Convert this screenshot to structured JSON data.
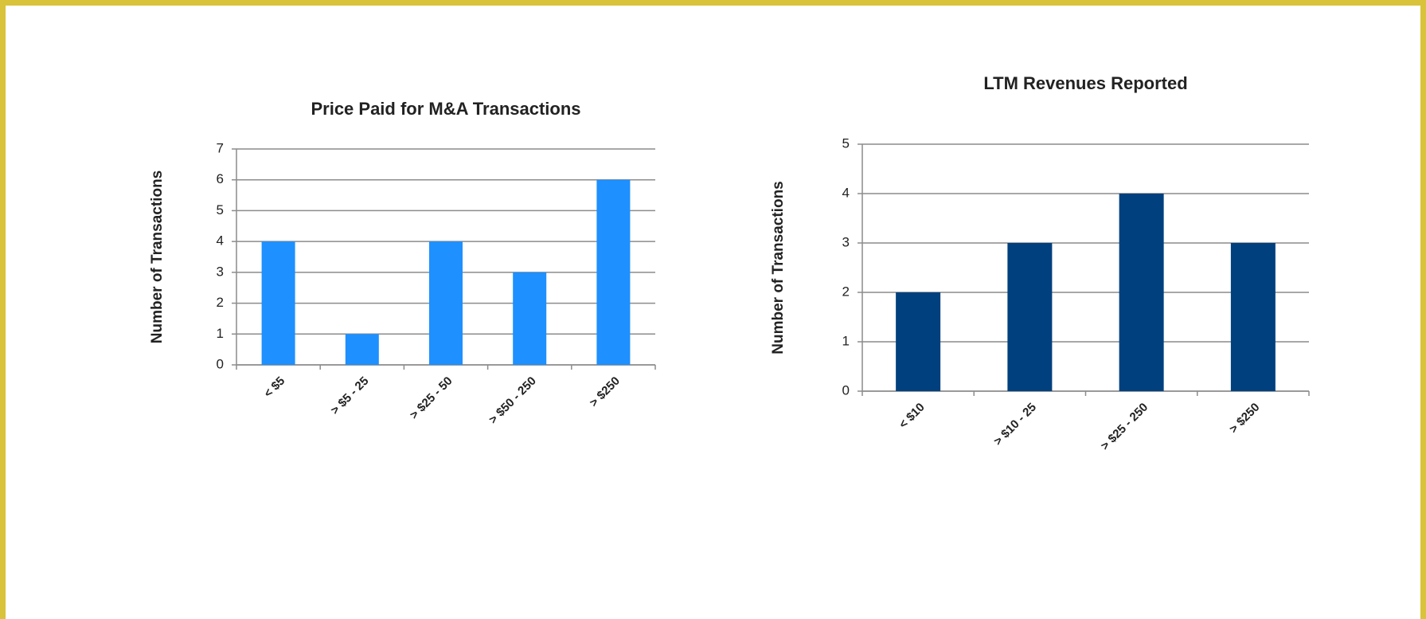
{
  "chart_data": [
    {
      "type": "bar",
      "title": "Price Paid for M&A Transactions",
      "y_label": "Number of Transactions",
      "categories": [
        "< $5",
        "> $5 - 25",
        "> $25 - 50",
        "> $50 - 250",
        "> $250"
      ],
      "values": [
        4,
        1,
        4,
        3,
        6
      ],
      "color": "#1e90ff",
      "ylim": [
        0,
        7
      ],
      "yticks": [
        0,
        1,
        2,
        3,
        4,
        5,
        6,
        7
      ],
      "grid": true
    },
    {
      "type": "bar",
      "title": "LTM Revenues Reported",
      "y_label": "Number of Transactions",
      "categories": [
        "< $10",
        "> $10 - 25",
        "> $25 - 250",
        "> $250"
      ],
      "values": [
        2,
        3,
        4,
        3
      ],
      "color": "#00407e",
      "ylim": [
        0,
        5
      ],
      "yticks": [
        0,
        1,
        2,
        3,
        4,
        5
      ],
      "grid": true
    }
  ]
}
